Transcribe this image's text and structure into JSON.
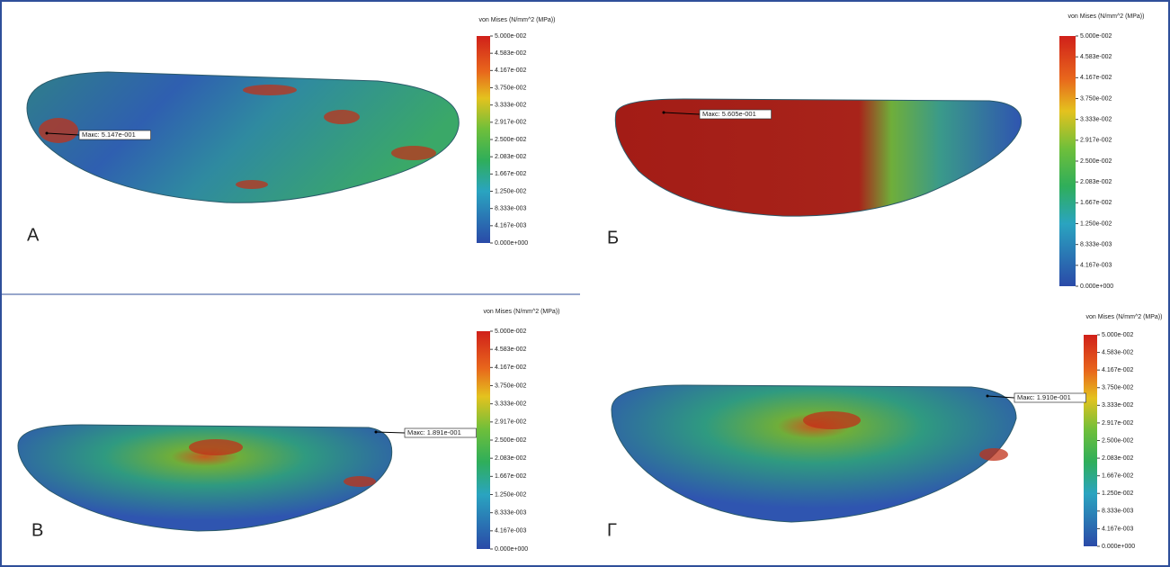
{
  "panels": [
    {
      "label": "А",
      "legend_title": "von Mises (N/mm^2 (MPa))",
      "max_label": "Макс: 5.147e-001",
      "legend_ticks": [
        "5.000e-002",
        "4.583e-002",
        "4.167e-002",
        "3.750e-002",
        "3.333e-002",
        "2.917e-002",
        "2.500e-002",
        "2.083e-002",
        "1.667e-002",
        "1.250e-002",
        "8.333e-003",
        "4.167e-003",
        "0.000e+000"
      ]
    },
    {
      "label": "Б",
      "legend_title": "von Mises (N/mm^2 (MPa))",
      "max_label": "Макс: 5.605e-001",
      "legend_ticks": [
        "5.000e-002",
        "4.583e-002",
        "4.167e-002",
        "3.750e-002",
        "3.333e-002",
        "2.917e-002",
        "2.500e-002",
        "2.083e-002",
        "1.667e-002",
        "1.250e-002",
        "8.333e-003",
        "4.167e-003",
        "0.000e+000"
      ]
    },
    {
      "label": "В",
      "legend_title": "von Mises (N/mm^2 (MPa))",
      "max_label": "Макс: 1.891e-001",
      "legend_ticks": [
        "5.000e-002",
        "4.583e-002",
        "4.167e-002",
        "3.750e-002",
        "3.333e-002",
        "2.917e-002",
        "2.500e-002",
        "2.083e-002",
        "1.667e-002",
        "1.250e-002",
        "8.333e-003",
        "4.167e-003",
        "0.000e+000"
      ]
    },
    {
      "label": "Г",
      "legend_title": "von Mises (N/mm^2 (MPa))",
      "max_label": "Макс: 1.910e-001",
      "legend_ticks": [
        "5.000e-002",
        "4.583e-002",
        "4.167e-002",
        "3.750e-002",
        "3.333e-002",
        "2.917e-002",
        "2.500e-002",
        "2.083e-002",
        "1.667e-002",
        "1.250e-002",
        "8.333e-003",
        "4.167e-003",
        "0.000e+000"
      ]
    }
  ]
}
